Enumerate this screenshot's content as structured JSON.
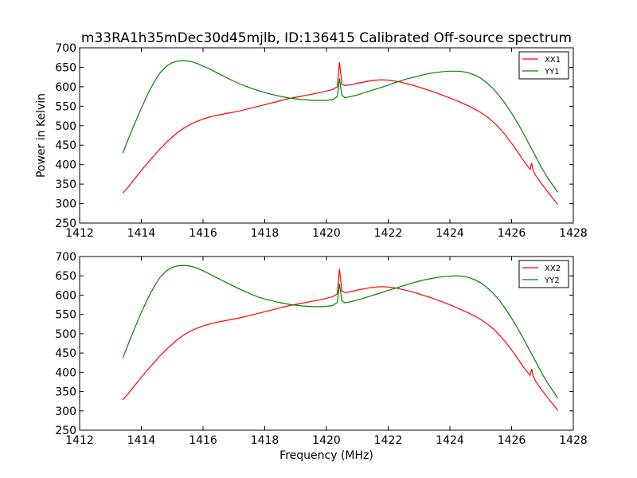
{
  "title": "m33RA1h35mDec30d45mjlb, ID:136415 Calibrated Off-source spectrum",
  "chart_data": [
    {
      "type": "line",
      "title": "m33RA1h35mDec30d45mjlb, ID:136415 Calibrated Off-source spectrum",
      "xlabel": "",
      "ylabel": "Power in Kelvin",
      "xlim": [
        1412,
        1428
      ],
      "ylim": [
        250,
        700
      ],
      "xticks": [
        1412,
        1414,
        1416,
        1418,
        1420,
        1422,
        1424,
        1426,
        1428
      ],
      "yticks": [
        250,
        300,
        350,
        400,
        450,
        500,
        550,
        600,
        650,
        700
      ],
      "grid": false,
      "legend": "top-right",
      "series": [
        {
          "name": "XX1",
          "color": "#ff0000",
          "x": [
            1413.4,
            1413.6,
            1413.8,
            1414.0,
            1414.2,
            1414.4,
            1414.6,
            1414.8,
            1415.0,
            1415.2,
            1415.4,
            1415.6,
            1415.8,
            1416.0,
            1416.2,
            1416.4,
            1416.6,
            1416.8,
            1417.0,
            1417.2,
            1417.4,
            1417.6,
            1417.8,
            1418.0,
            1418.2,
            1418.4,
            1418.6,
            1418.8,
            1419.0,
            1419.2,
            1419.4,
            1419.6,
            1419.8,
            1420.0,
            1420.2,
            1420.35,
            1420.42,
            1420.5,
            1420.6,
            1420.8,
            1421.0,
            1421.2,
            1421.4,
            1421.6,
            1421.8,
            1422.0,
            1422.2,
            1422.4,
            1422.6,
            1422.8,
            1423.0,
            1423.2,
            1423.4,
            1423.6,
            1423.8,
            1424.0,
            1424.2,
            1424.4,
            1424.6,
            1424.8,
            1425.0,
            1425.2,
            1425.4,
            1425.6,
            1425.8,
            1426.0,
            1426.2,
            1426.4,
            1426.6,
            1426.65,
            1426.7,
            1426.8,
            1427.0,
            1427.2,
            1427.4,
            1427.5
          ],
          "y": [
            327,
            345,
            365,
            385,
            404,
            422,
            440,
            456,
            471,
            484,
            495,
            504,
            511,
            517,
            522,
            526,
            529,
            532,
            535,
            538,
            542,
            546,
            550,
            554,
            558,
            562,
            566,
            570,
            573,
            576,
            579,
            582,
            585,
            589,
            593,
            600,
            663,
            606,
            603,
            605,
            609,
            612,
            615,
            617,
            618,
            617,
            615,
            612,
            608,
            604,
            599,
            594,
            589,
            583,
            577,
            571,
            565,
            558,
            551,
            543,
            534,
            523,
            510,
            494,
            476,
            455,
            432,
            409,
            388,
            404,
            384,
            370,
            348,
            327,
            307,
            298
          ]
        },
        {
          "name": "YY1",
          "color": "#008000",
          "x": [
            1413.4,
            1413.6,
            1413.8,
            1414.0,
            1414.2,
            1414.4,
            1414.6,
            1414.8,
            1415.0,
            1415.2,
            1415.4,
            1415.6,
            1415.8,
            1416.0,
            1416.2,
            1416.4,
            1416.6,
            1416.8,
            1417.0,
            1417.2,
            1417.4,
            1417.6,
            1417.8,
            1418.0,
            1418.2,
            1418.4,
            1418.6,
            1418.8,
            1419.0,
            1419.2,
            1419.4,
            1419.6,
            1419.8,
            1420.0,
            1420.2,
            1420.35,
            1420.42,
            1420.5,
            1420.6,
            1420.8,
            1421.0,
            1421.2,
            1421.4,
            1421.6,
            1421.8,
            1422.0,
            1422.2,
            1422.4,
            1422.6,
            1422.8,
            1423.0,
            1423.2,
            1423.4,
            1423.6,
            1423.8,
            1424.0,
            1424.2,
            1424.4,
            1424.6,
            1424.8,
            1425.0,
            1425.2,
            1425.4,
            1425.6,
            1425.8,
            1426.0,
            1426.2,
            1426.4,
            1426.6,
            1426.8,
            1427.0,
            1427.2,
            1427.4,
            1427.5
          ],
          "y": [
            430,
            470,
            508,
            545,
            580,
            610,
            635,
            652,
            662,
            666,
            667,
            665,
            660,
            653,
            646,
            638,
            630,
            622,
            614,
            607,
            601,
            595,
            590,
            585,
            581,
            577,
            574,
            571,
            569,
            567,
            566,
            565,
            565,
            565,
            567,
            575,
            621,
            578,
            572,
            575,
            579,
            584,
            589,
            594,
            599,
            604,
            610,
            615,
            620,
            624,
            628,
            632,
            635,
            637,
            639,
            640,
            640,
            639,
            636,
            630,
            622,
            610,
            595,
            577,
            556,
            532,
            506,
            478,
            448,
            418,
            388,
            362,
            340,
            329
          ]
        }
      ]
    },
    {
      "type": "line",
      "title": "",
      "xlabel": "Frequency (MHz)",
      "ylabel": "",
      "xlim": [
        1412,
        1428
      ],
      "ylim": [
        250,
        700
      ],
      "xticks": [
        1412,
        1414,
        1416,
        1418,
        1420,
        1422,
        1424,
        1426,
        1428
      ],
      "yticks": [
        250,
        300,
        350,
        400,
        450,
        500,
        550,
        600,
        650,
        700
      ],
      "grid": false,
      "legend": "top-right",
      "series": [
        {
          "name": "XX2",
          "color": "#ff0000",
          "x": [
            1413.4,
            1413.6,
            1413.8,
            1414.0,
            1414.2,
            1414.4,
            1414.6,
            1414.8,
            1415.0,
            1415.2,
            1415.4,
            1415.6,
            1415.8,
            1416.0,
            1416.2,
            1416.4,
            1416.6,
            1416.8,
            1417.0,
            1417.2,
            1417.4,
            1417.6,
            1417.8,
            1418.0,
            1418.2,
            1418.4,
            1418.6,
            1418.8,
            1419.0,
            1419.2,
            1419.4,
            1419.6,
            1419.8,
            1420.0,
            1420.2,
            1420.35,
            1420.42,
            1420.5,
            1420.6,
            1420.8,
            1421.0,
            1421.2,
            1421.4,
            1421.6,
            1421.8,
            1422.0,
            1422.2,
            1422.4,
            1422.6,
            1422.8,
            1423.0,
            1423.2,
            1423.4,
            1423.6,
            1423.8,
            1424.0,
            1424.2,
            1424.4,
            1424.6,
            1424.8,
            1425.0,
            1425.2,
            1425.4,
            1425.6,
            1425.8,
            1426.0,
            1426.2,
            1426.4,
            1426.6,
            1426.65,
            1426.7,
            1426.8,
            1427.0,
            1427.2,
            1427.4,
            1427.5
          ],
          "y": [
            329,
            347,
            367,
            387,
            406,
            424,
            442,
            458,
            473,
            487,
            498,
            507,
            514,
            520,
            525,
            529,
            532,
            535,
            538,
            541,
            545,
            549,
            553,
            557,
            561,
            565,
            569,
            573,
            576,
            579,
            582,
            585,
            588,
            592,
            596,
            603,
            668,
            610,
            607,
            609,
            613,
            616,
            619,
            621,
            622,
            621,
            619,
            616,
            612,
            608,
            603,
            598,
            593,
            587,
            581,
            575,
            568,
            561,
            554,
            546,
            537,
            526,
            513,
            497,
            479,
            458,
            435,
            412,
            392,
            409,
            390,
            374,
            352,
            331,
            311,
            301
          ]
        },
        {
          "name": "YY2",
          "color": "#008000",
          "x": [
            1413.4,
            1413.6,
            1413.8,
            1414.0,
            1414.2,
            1414.4,
            1414.6,
            1414.8,
            1415.0,
            1415.2,
            1415.4,
            1415.6,
            1415.8,
            1416.0,
            1416.2,
            1416.4,
            1416.6,
            1416.8,
            1417.0,
            1417.2,
            1417.4,
            1417.6,
            1417.8,
            1418.0,
            1418.2,
            1418.4,
            1418.6,
            1418.8,
            1419.0,
            1419.2,
            1419.4,
            1419.6,
            1419.8,
            1420.0,
            1420.2,
            1420.35,
            1420.42,
            1420.5,
            1420.6,
            1420.8,
            1421.0,
            1421.2,
            1421.4,
            1421.6,
            1421.8,
            1422.0,
            1422.2,
            1422.4,
            1422.6,
            1422.8,
            1423.0,
            1423.2,
            1423.4,
            1423.6,
            1423.8,
            1424.0,
            1424.2,
            1424.4,
            1424.6,
            1424.8,
            1425.0,
            1425.2,
            1425.4,
            1425.6,
            1425.8,
            1426.0,
            1426.2,
            1426.4,
            1426.6,
            1426.8,
            1427.0,
            1427.2,
            1427.4,
            1427.5
          ],
          "y": [
            437,
            478,
            517,
            555,
            590,
            620,
            645,
            662,
            672,
            676,
            677,
            675,
            670,
            663,
            655,
            647,
            639,
            631,
            623,
            615,
            608,
            601,
            595,
            590,
            586,
            582,
            579,
            576,
            574,
            572,
            571,
            570,
            570,
            571,
            573,
            581,
            630,
            585,
            580,
            583,
            587,
            592,
            597,
            602,
            607,
            612,
            617,
            622,
            627,
            632,
            636,
            640,
            643,
            646,
            648,
            649,
            650,
            649,
            646,
            640,
            632,
            620,
            605,
            587,
            565,
            540,
            513,
            485,
            455,
            425,
            395,
            368,
            345,
            333
          ]
        }
      ]
    }
  ]
}
